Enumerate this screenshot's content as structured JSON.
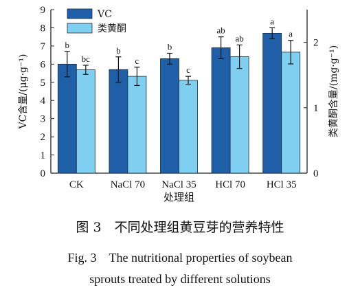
{
  "chart_data": {
    "type": "bar",
    "categories": [
      "CK",
      "NaCl 70",
      "NaCl 35",
      "HCl 70",
      "HCl 35"
    ],
    "xlabel": "处理组",
    "ylabel_left": "VC含量/(μg·g⁻¹)",
    "ylabel_right": "类黄酮含量/(mg·g⁻¹)",
    "ylim_left": [
      0,
      9
    ],
    "ylim_right": [
      0,
      2.5
    ],
    "yticks_left": [
      "0",
      "1",
      "2",
      "3",
      "4",
      "5",
      "6",
      "7",
      "8",
      "9"
    ],
    "yticks_right": [
      "0",
      "1",
      "2"
    ],
    "legend_position": "top-left",
    "series": [
      {
        "name": "VC",
        "axis": "left",
        "color": "#1f5fa8",
        "values": [
          6.0,
          5.7,
          6.3,
          6.9,
          7.7
        ],
        "errors": [
          0.7,
          0.7,
          0.3,
          0.6,
          0.3
        ],
        "labels": [
          "b",
          "b",
          "b",
          "ab",
          "a"
        ]
      },
      {
        "name": "类黄酮",
        "axis": "right",
        "color": "#7fd0f0",
        "values": [
          1.58,
          1.48,
          1.42,
          1.78,
          1.85
        ],
        "errors": [
          0.07,
          0.14,
          0.06,
          0.18,
          0.18
        ],
        "labels": [
          "bc",
          "c",
          "c",
          "ab",
          "a"
        ]
      }
    ]
  },
  "caption": {
    "cn": "图 3　不同处理组黄豆芽的营养特性",
    "en_line1": "Fig. 3　The nutritional properties of soybean",
    "en_line2": "sprouts treated by different solutions"
  }
}
